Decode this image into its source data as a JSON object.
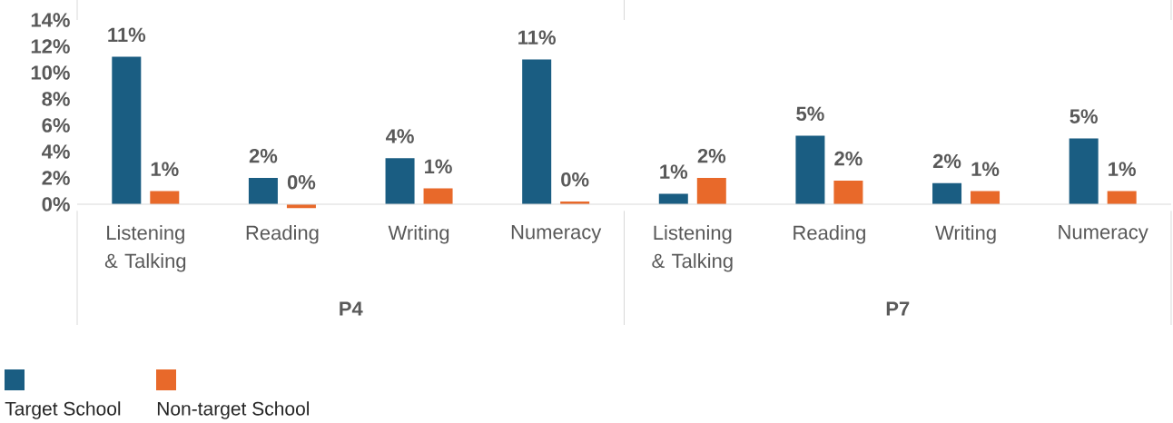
{
  "chart_data": {
    "type": "bar",
    "categories": [
      "Listening & Talking",
      "Reading",
      "Writing",
      "Numeracy",
      "Listening & Talking",
      "Reading",
      "Writing",
      "Numeracy"
    ],
    "series": [
      {
        "name": "Target School",
        "color": "#1a5d82",
        "values": [
          11.2,
          2.0,
          3.5,
          11.0,
          0.8,
          5.2,
          1.6,
          5.0
        ],
        "value_labels": [
          "11%",
          "2%",
          "4%",
          "11%",
          "1%",
          "5%",
          "2%",
          "5%"
        ]
      },
      {
        "name": "Non-target School",
        "color": "#e8692a",
        "values": [
          1.0,
          -0.3,
          1.2,
          0.2,
          2.0,
          1.8,
          1.0,
          1.0
        ],
        "value_labels": [
          "1%",
          "0%",
          "1%",
          "0%",
          "2%",
          "2%",
          "1%",
          "1%"
        ]
      }
    ],
    "ylim": [
      -0.5,
      14
    ],
    "yticks": [
      {
        "value": 0,
        "label": "0%"
      },
      {
        "value": 2,
        "label": "2%"
      },
      {
        "value": 4,
        "label": "4%"
      },
      {
        "value": 6,
        "label": "6%"
      },
      {
        "value": 8,
        "label": "8%"
      },
      {
        "value": 10,
        "label": "10%"
      },
      {
        "value": 12,
        "label": "12%"
      },
      {
        "value": 14,
        "label": "14%"
      }
    ],
    "legend": "bottom",
    "annotations": [
      "P4",
      "P7"
    ]
  }
}
